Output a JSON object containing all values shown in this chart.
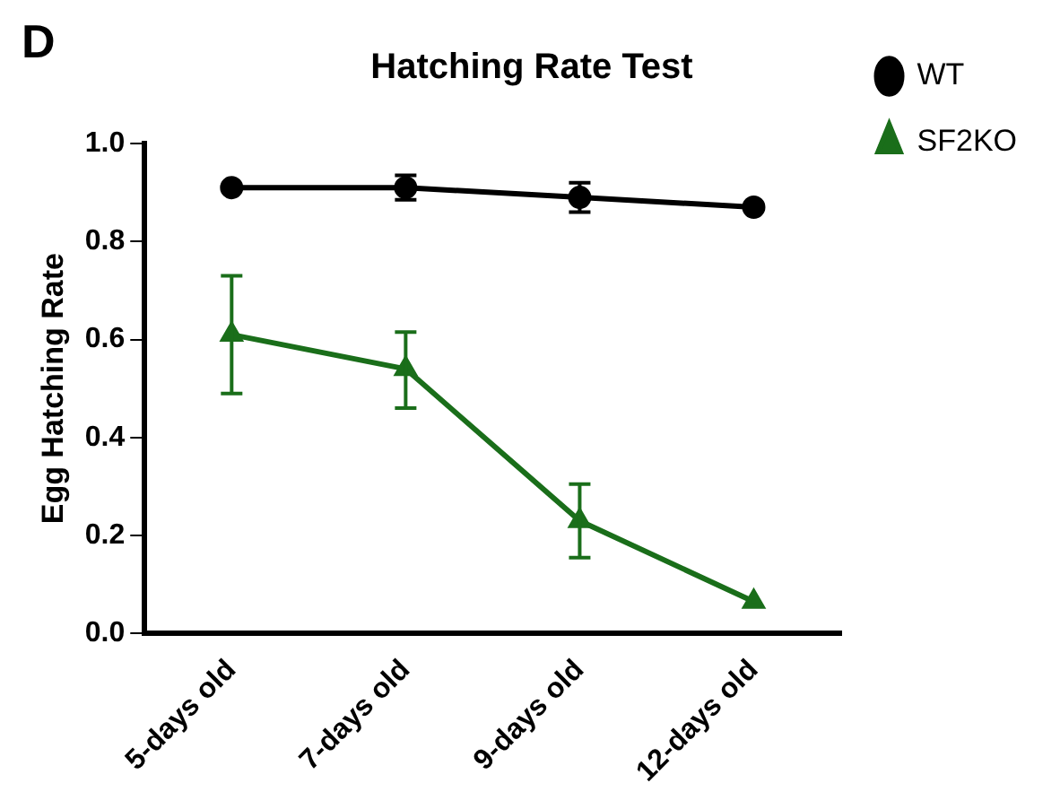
{
  "chart_data": {
    "type": "line",
    "title": "Hatching Rate Test",
    "ylabel": "Egg Hatching Rate",
    "annotations": [
      "D"
    ],
    "categories": [
      "5-days old",
      "7-days old",
      "9-days old",
      "12-days old"
    ],
    "ylim": [
      0,
      1
    ],
    "yticks": [
      {
        "value": 0,
        "label": "0.0"
      },
      {
        "value": 0.2,
        "label": "0.2"
      },
      {
        "value": 0.4,
        "label": "0.4"
      },
      {
        "value": 0.6,
        "label": "0.6"
      },
      {
        "value": 0.8,
        "label": "0.8"
      },
      {
        "value": 1,
        "label": "1.0"
      }
    ],
    "grid": false,
    "legend": "top right",
    "line_style": "solid",
    "series": [
      {
        "name": "WT",
        "color": "#000000",
        "marker": "circle",
        "values": [
          0.91,
          0.91,
          0.89,
          0.87
        ],
        "errors": [
          null,
          0.025,
          0.03,
          null
        ]
      },
      {
        "name": "SF2KO",
        "color": "#1a6e1a",
        "marker": "triangle",
        "values": [
          0.61,
          0.54,
          0.23,
          0.065
        ],
        "errors": [
          [
            0.49,
            0.73
          ],
          [
            0.46,
            0.615
          ],
          [
            0.155,
            0.305
          ],
          null
        ]
      }
    ]
  }
}
